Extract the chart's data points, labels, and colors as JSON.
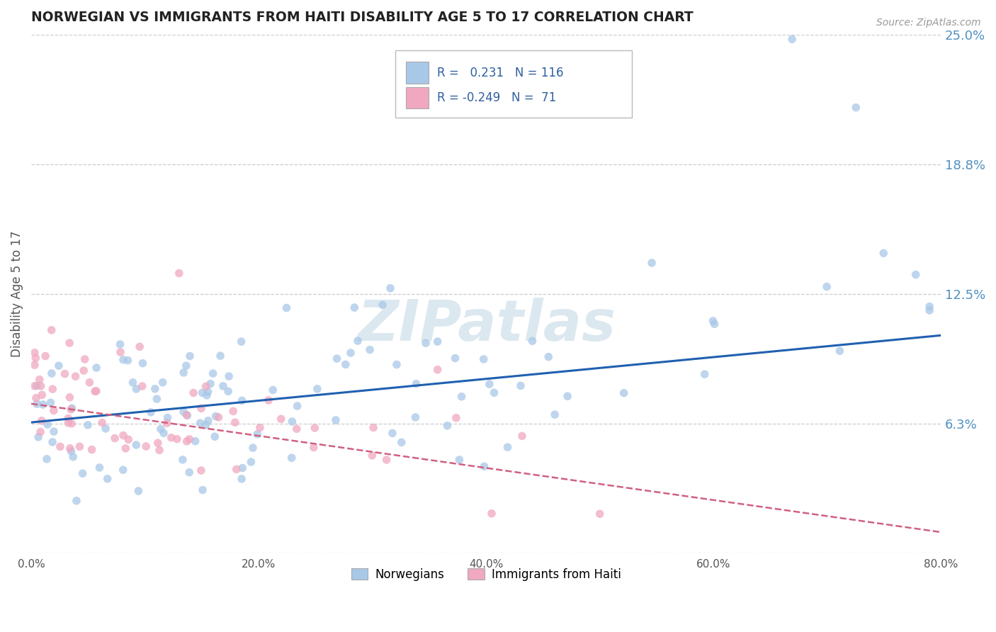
{
  "title": "NORWEGIAN VS IMMIGRANTS FROM HAITI DISABILITY AGE 5 TO 17 CORRELATION CHART",
  "source": "Source: ZipAtlas.com",
  "ylabel": "Disability Age 5 to 17",
  "xlim": [
    0.0,
    80.0
  ],
  "ylim": [
    0.0,
    25.0
  ],
  "yticks": [
    0.0,
    6.25,
    12.5,
    18.75,
    25.0
  ],
  "ytick_labels": [
    "",
    "6.3%",
    "12.5%",
    "18.8%",
    "25.0%"
  ],
  "xtick_labels": [
    "0.0%",
    "20.0%",
    "40.0%",
    "60.0%",
    "80.0%"
  ],
  "xticks": [
    0.0,
    20.0,
    40.0,
    60.0,
    80.0
  ],
  "r_norwegian": 0.231,
  "n_norwegian": 116,
  "r_haiti": -0.249,
  "n_haiti": 71,
  "blue_scatter_color": "#a8c8e8",
  "pink_scatter_color": "#f0a8c0",
  "trend_blue_color": "#2060b0",
  "trend_pink_color": "#d06080",
  "background_color": "#ffffff",
  "grid_color": "#cccccc",
  "title_color": "#222222",
  "watermark_color": "#dce8f0",
  "watermark_text": "ZIPatlas",
  "right_label_color": "#5090c0",
  "legend_label_color": "#3060a0",
  "norwegians_label": "Norwegians",
  "haiti_label": "Immigrants from Haiti"
}
